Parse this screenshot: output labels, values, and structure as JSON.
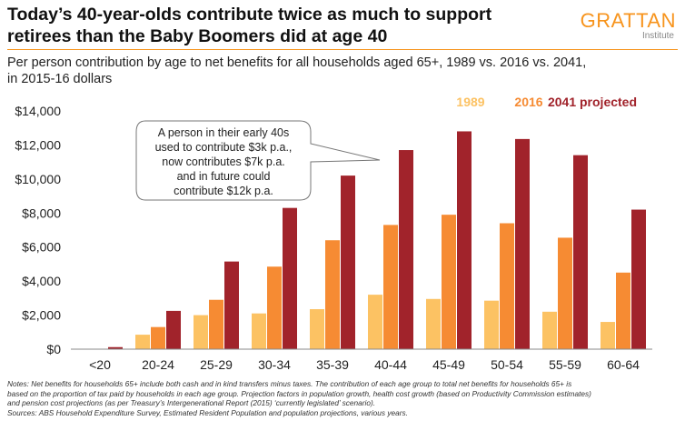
{
  "header": {
    "title_line1": "Today’s 40-year-olds contribute twice as much to support",
    "title_line2": "retirees than the Baby Boomers did at age 40",
    "logo_name": "GRATTAN",
    "logo_sub": "Institute",
    "subtitle_line1": "Per person contribution by age to net benefits for all households aged 65+, 1989 vs. 2016 vs. 2041,",
    "subtitle_line2": "in 2015-16 dollars"
  },
  "chart_data": {
    "type": "bar",
    "title": "",
    "xlabel": "",
    "ylabel": "",
    "ylim": [
      0,
      14000
    ],
    "yticks": [
      0,
      2000,
      4000,
      6000,
      8000,
      10000,
      12000,
      14000
    ],
    "ytick_labels": [
      "$0",
      "$2,000",
      "$4,000",
      "$6,000",
      "$8,000",
      "$10,000",
      "$12,000",
      "$14,000"
    ],
    "grid": false,
    "legend_position": "top-right",
    "categories": [
      "<20",
      "20-24",
      "25-29",
      "30-34",
      "35-39",
      "40-44",
      "45-49",
      "50-54",
      "55-59",
      "60-64"
    ],
    "series": [
      {
        "name": "1989",
        "color": "#fcc263",
        "values": [
          0,
          850,
          2000,
          2100,
          2350,
          3200,
          2950,
          2850,
          2200,
          1600
        ]
      },
      {
        "name": "2016",
        "color": "#f68b33",
        "values": [
          0,
          1300,
          2900,
          4850,
          6400,
          7300,
          7900,
          7400,
          6550,
          4500
        ]
      },
      {
        "name": "2041 projected",
        "color": "#a1232b",
        "values": [
          120,
          2250,
          5150,
          8300,
          10200,
          11700,
          12800,
          12350,
          11400,
          8200
        ]
      }
    ],
    "annotation": {
      "lines": [
        "A person in their early 40s",
        "used to contribute $3k p.a.,",
        "now contributes $7k p.a.",
        "and in future could",
        "contribute $12k p.a."
      ]
    }
  },
  "notes": {
    "line1": "Notes: Net benefits for households 65+ include both cash and in kind transfers minus taxes. The contribution of each age group to total net benefits for households 65+ is",
    "line2": "based on the proportion of tax paid by households in each age group. Projection factors in population growth, health cost growth (based on Productivity Commission estimates)",
    "line3": "and pension cost projections (as per Treasury’s Intergenerational Report (2015) ‘currently legislated’ scenario).",
    "line4": "Sources: ABS Household Expenditure Survey, Estimated Resident Population and population projections, various years."
  }
}
